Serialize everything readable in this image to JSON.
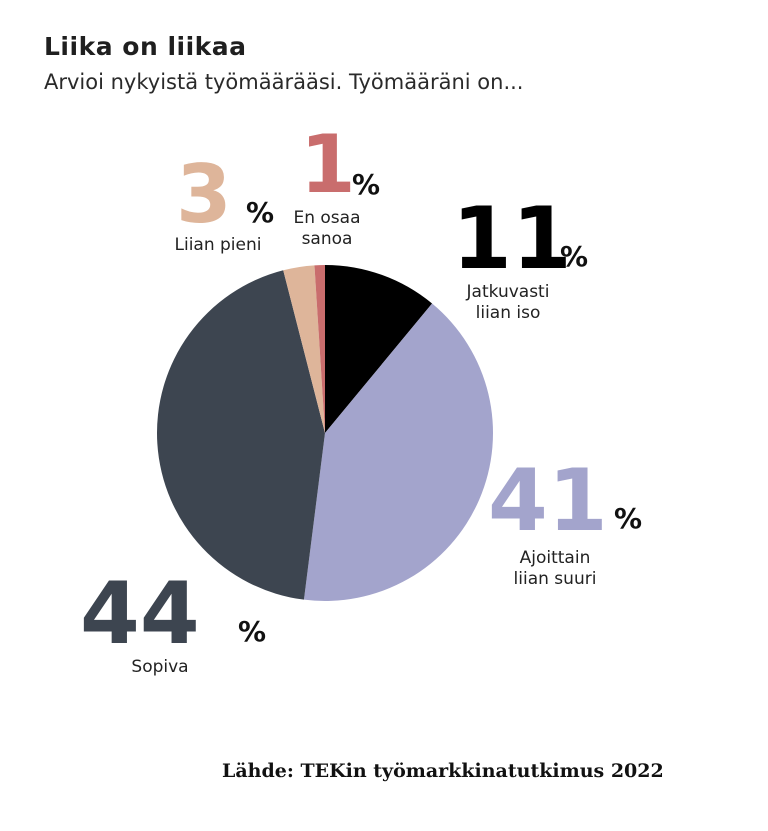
{
  "title": "Liika on liikaa",
  "subtitle": "Arvioi nykyistä työmäärääsi. Työmääräni on...",
  "source": "Lähde: TEKin työmarkkinatutkimus 2022",
  "chart_data": {
    "type": "pie",
    "slices": [
      {
        "value": 11,
        "number": "11",
        "label_lines": [
          "Jatkuvasti",
          "liian iso"
        ],
        "color": "#000000"
      },
      {
        "value": 41,
        "number": "41",
        "label_lines": [
          "Ajoittain",
          "liian suuri"
        ],
        "color": "#a3a4cc"
      },
      {
        "value": 44,
        "number": "44",
        "label_lines": [
          "Sopiva"
        ],
        "color": "#3d4550"
      },
      {
        "value": 3,
        "number": "3",
        "label_lines": [
          "Liian pieni"
        ],
        "color": "#deb59a"
      },
      {
        "value": 1,
        "number": "1",
        "label_lines": [
          "En osaa",
          "sanoa"
        ],
        "color": "#c96d6d"
      }
    ],
    "unit": "%"
  }
}
